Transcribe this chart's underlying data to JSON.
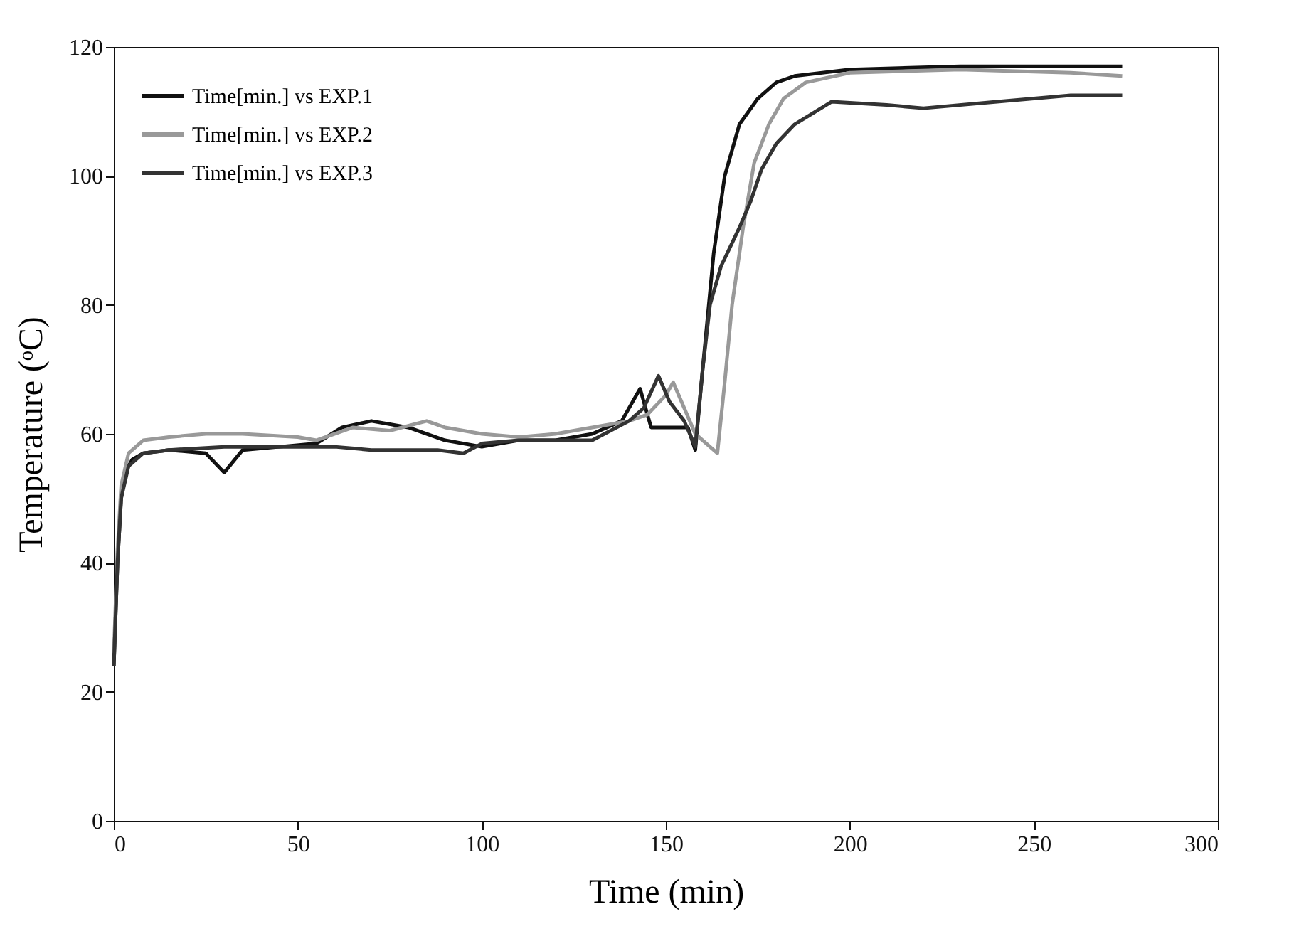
{
  "chart_data": {
    "type": "line",
    "xlabel": "Time (min)",
    "ylabel": "Temperature (ᵒC)",
    "xlim": [
      0,
      300
    ],
    "xticks": [
      0,
      50,
      100,
      150,
      200,
      250,
      300
    ],
    "ylim": [
      0,
      120
    ],
    "yticks": [
      0,
      20,
      40,
      60,
      80,
      100,
      120
    ],
    "grid": false,
    "legend": "top left",
    "line_style": "solid",
    "series": [
      {
        "name": "Time[min.] vs EXP.1",
        "color": "#111111",
        "x": [
          0,
          1,
          2,
          3,
          5,
          8,
          15,
          25,
          30,
          35,
          45,
          55,
          62,
          70,
          80,
          90,
          100,
          110,
          120,
          130,
          138,
          143,
          146,
          150,
          156,
          158,
          160,
          163,
          166,
          170,
          175,
          180,
          185,
          200,
          230,
          274
        ],
        "values": [
          24,
          40,
          50,
          54,
          56,
          57,
          57.5,
          57,
          54,
          57.5,
          58,
          58.5,
          61,
          62,
          61,
          59,
          58,
          59,
          59,
          60,
          62,
          67,
          61,
          61,
          61,
          57.5,
          70,
          88,
          100,
          108,
          112,
          114.5,
          115.5,
          116.5,
          117,
          117
        ]
      },
      {
        "name": "Time[min.] vs EXP.2",
        "color": "#999999",
        "x": [
          0,
          1,
          2,
          4,
          8,
          15,
          25,
          35,
          50,
          55,
          65,
          75,
          85,
          90,
          100,
          110,
          120,
          130,
          140,
          145,
          150,
          152,
          155,
          158,
          162,
          164,
          166,
          168,
          171,
          174,
          178,
          182,
          188,
          200,
          230,
          260,
          274
        ],
        "values": [
          26,
          42,
          52,
          57,
          59,
          59.5,
          60,
          60,
          59.5,
          59,
          61,
          60.5,
          62,
          61,
          60,
          59.5,
          60,
          61,
          62,
          63,
          66,
          68,
          64,
          60,
          58,
          57,
          68,
          80,
          92,
          102,
          108,
          112,
          114.5,
          116,
          116.5,
          116,
          115.5
        ]
      },
      {
        "name": "Time[min.] vs EXP.3",
        "color": "#333333",
        "x": [
          0,
          1,
          2,
          4,
          8,
          15,
          30,
          50,
          60,
          70,
          80,
          88,
          95,
          100,
          110,
          120,
          130,
          140,
          144,
          148,
          151,
          155,
          158,
          160,
          162,
          165,
          170,
          173,
          176,
          180,
          185,
          195,
          210,
          220,
          240,
          260,
          274
        ],
        "values": [
          24,
          40,
          50,
          55,
          57,
          57.5,
          58,
          58,
          58,
          57.5,
          57.5,
          57.5,
          57,
          58.5,
          59,
          59,
          59,
          62,
          64,
          69,
          65,
          62,
          58,
          70,
          80,
          86,
          92,
          96,
          101,
          105,
          108,
          111.5,
          111,
          110.5,
          111.5,
          112.5,
          112.5
        ]
      }
    ]
  }
}
